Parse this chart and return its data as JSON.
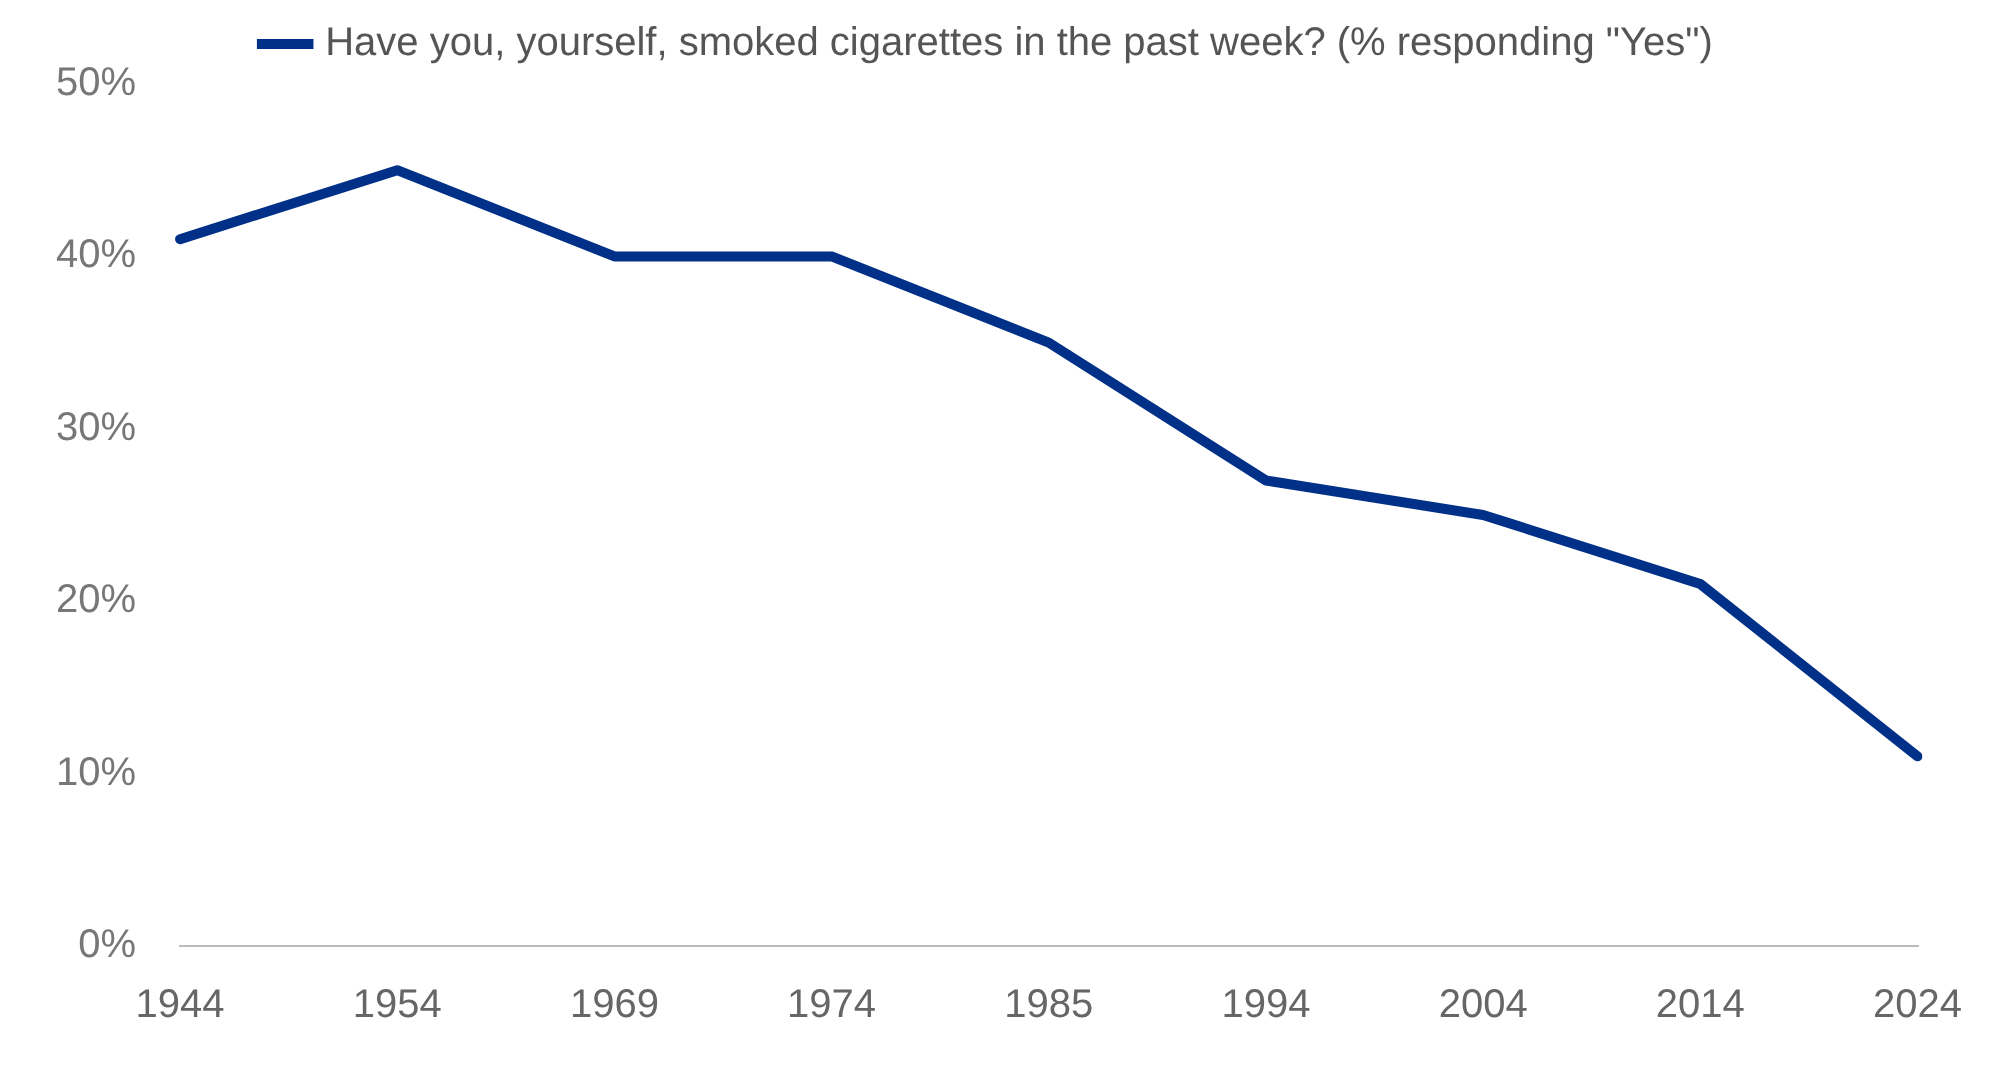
{
  "chart_data": {
    "type": "line",
    "categories": [
      "1944",
      "1954",
      "1969",
      "1974",
      "1985",
      "1994",
      "2004",
      "2014",
      "2024"
    ],
    "series": [
      {
        "name": "Have you, yourself, smoked cigarettes in the past week? (% responding \"Yes\")",
        "color": "#003087",
        "values": [
          41,
          45,
          40,
          40,
          35,
          27,
          25,
          21,
          11
        ]
      }
    ],
    "ylim": [
      0,
      50
    ],
    "yticks": [
      {
        "value": 0,
        "label": "0%"
      },
      {
        "value": 10,
        "label": "10%"
      },
      {
        "value": 20,
        "label": "20%"
      },
      {
        "value": 30,
        "label": "30%"
      },
      {
        "value": 40,
        "label": "40%"
      },
      {
        "value": 50,
        "label": "50%"
      }
    ],
    "grid": false,
    "legend": "top",
    "marker": "none",
    "line_style": "solid"
  }
}
